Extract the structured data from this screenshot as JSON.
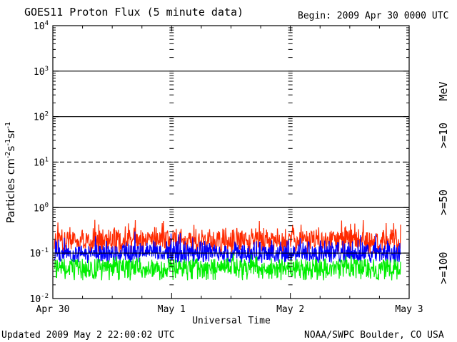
{
  "header": {
    "title": "GOES11 Proton Flux (5 minute data)",
    "begin": "Begin: 2009 Apr 30 0000 UTC"
  },
  "footer": {
    "updated": "Updated 2009 May  2 22:00:02 UTC",
    "credit": "NOAA/SWPC Boulder, CO USA"
  },
  "colors": {
    "ge10": "#ff2a00",
    "ge50": "#0000ff",
    "ge100": "#00ee00",
    "axis": "#000000"
  },
  "chart_data": {
    "type": "line",
    "title": "GOES11 Proton Flux (5 minute data)",
    "xlabel": "Universal Time",
    "ylabel": "Particles cm-2s-1sr-1",
    "unit_label": "MeV",
    "y_scale": "log",
    "ylim": [
      0.01,
      10000
    ],
    "xlim": [
      "2009-04-30T00:00Z",
      "2009-05-03T00:00Z"
    ],
    "x_tick_labels": [
      "Apr 30",
      "May 1",
      "May 2",
      "May 3"
    ],
    "y_tick_values": [
      0.01,
      0.1,
      1,
      10,
      100,
      1000,
      10000
    ],
    "y_tick_labels": [
      {
        "base": "10",
        "exp": "-2"
      },
      {
        "base": "10",
        "exp": "-1"
      },
      {
        "base": "10",
        "exp": "0"
      },
      {
        "base": "10",
        "exp": "1"
      },
      {
        "base": "10",
        "exp": "2"
      },
      {
        "base": "10",
        "exp": "3"
      },
      {
        "base": "10",
        "exp": "4"
      }
    ],
    "reference_lines": [
      {
        "value": 10,
        "style": "dashed"
      },
      {
        "value": 100,
        "style": "solid"
      },
      {
        "value": 1000,
        "style": "solid"
      }
    ],
    "series": [
      {
        "name": ">=10",
        "color": "#ff2a00",
        "typical": 0.2,
        "low": 0.1,
        "high": 0.55
      },
      {
        "name": ">=50",
        "color": "#0000ff",
        "typical": 0.1,
        "low": 0.06,
        "high": 0.3
      },
      {
        "name": ">=100",
        "color": "#00ee00",
        "typical": 0.05,
        "low": 0.025,
        "high": 0.1
      }
    ],
    "grid": false
  }
}
